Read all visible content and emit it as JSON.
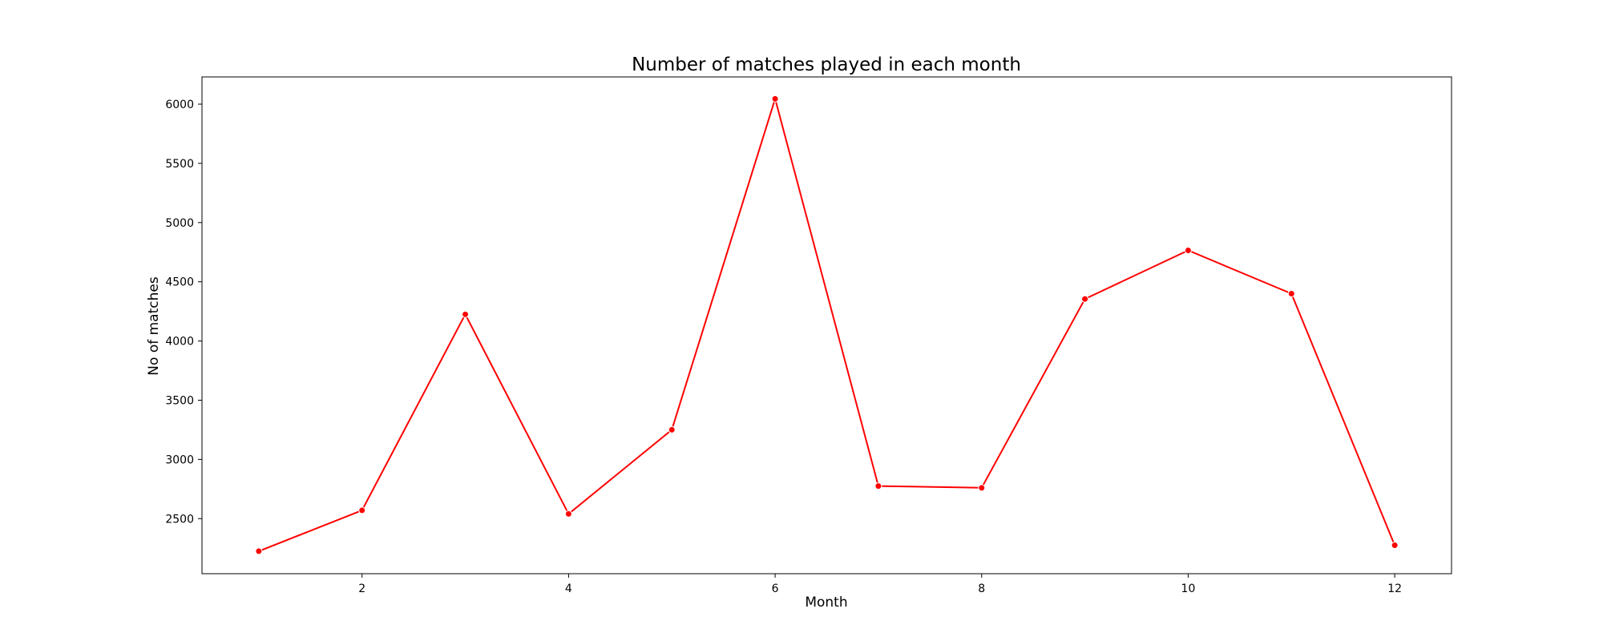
{
  "chart_data": {
    "type": "line",
    "title": "Number of matches played in each month",
    "xlabel": "Month",
    "ylabel": "No of matches",
    "x": [
      1,
      2,
      3,
      4,
      5,
      6,
      7,
      8,
      9,
      10,
      11,
      12
    ],
    "series": [
      {
        "values": [
          2225,
          2570,
          4225,
          2540,
          3250,
          6045,
          2775,
          2760,
          4355,
          4765,
          4400,
          2275
        ],
        "color": "#ff0000",
        "marker": "circle"
      }
    ],
    "xlim": [
      0.45,
      12.55
    ],
    "ylim": [
      2035,
      6230
    ],
    "xticks": [
      2,
      4,
      6,
      8,
      10,
      12
    ],
    "yticks": [
      2500,
      3000,
      3500,
      4000,
      4500,
      5000,
      5500,
      6000
    ],
    "grid": false,
    "legend": false
  }
}
